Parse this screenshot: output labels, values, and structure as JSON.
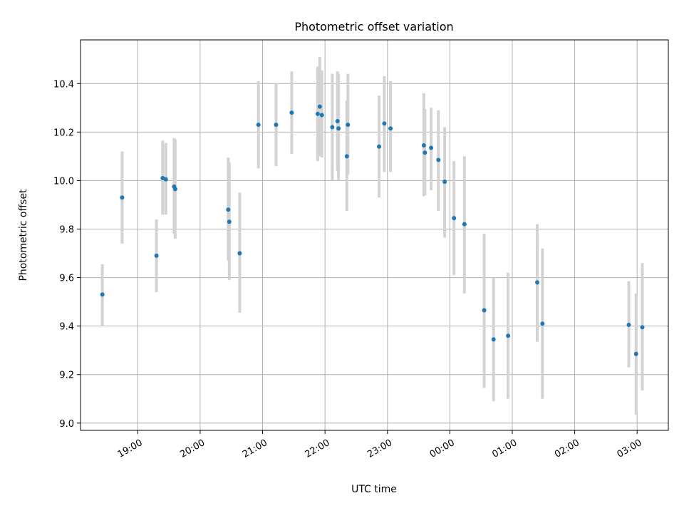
{
  "chart_data": {
    "type": "scatter",
    "title": "Photometric offset variation",
    "xlabel": "UTC time",
    "ylabel": "Photometric offset",
    "x_ticks": [
      "19:00",
      "20:00",
      "21:00",
      "22:00",
      "23:00",
      "00:00",
      "01:00",
      "02:00",
      "03:00"
    ],
    "y_ticks": [
      "9.0",
      "9.2",
      "9.4",
      "9.6",
      "9.8",
      "10.0",
      "10.2",
      "10.4"
    ],
    "ylim": [
      8.97,
      10.58
    ],
    "xlim": [
      "18:05",
      "03:30"
    ],
    "grid": true,
    "colors": {
      "points": "#1f77b4",
      "errorbars": "#d3d3d3",
      "grid": "#b0b0b0"
    },
    "points": [
      {
        "t": "18:26",
        "y": 9.53,
        "lo": 9.4,
        "hi": 9.655
      },
      {
        "t": "18:45",
        "y": 9.93,
        "lo": 9.74,
        "hi": 10.12
      },
      {
        "t": "19:18",
        "y": 9.69,
        "lo": 9.54,
        "hi": 9.84
      },
      {
        "t": "19:24",
        "y": 10.01,
        "lo": 9.86,
        "hi": 10.165
      },
      {
        "t": "19:27",
        "y": 10.005,
        "lo": 9.86,
        "hi": 10.155
      },
      {
        "t": "19:35",
        "y": 9.975,
        "lo": 9.78,
        "hi": 10.175
      },
      {
        "t": "19:36",
        "y": 9.965,
        "lo": 9.76,
        "hi": 10.17
      },
      {
        "t": "20:27",
        "y": 9.88,
        "lo": 9.67,
        "hi": 10.095
      },
      {
        "t": "20:28",
        "y": 9.83,
        "lo": 9.59,
        "hi": 10.075
      },
      {
        "t": "20:38",
        "y": 9.7,
        "lo": 9.455,
        "hi": 9.95
      },
      {
        "t": "20:56",
        "y": 10.23,
        "lo": 10.05,
        "hi": 10.41
      },
      {
        "t": "21:13",
        "y": 10.23,
        "lo": 10.06,
        "hi": 10.4
      },
      {
        "t": "21:28",
        "y": 10.28,
        "lo": 10.11,
        "hi": 10.45
      },
      {
        "t": "21:53",
        "y": 10.275,
        "lo": 10.08,
        "hi": 10.47
      },
      {
        "t": "21:55",
        "y": 10.305,
        "lo": 10.1,
        "hi": 10.51
      },
      {
        "t": "21:57",
        "y": 10.27,
        "lo": 10.095,
        "hi": 10.455
      },
      {
        "t": "22:07",
        "y": 10.22,
        "lo": 10.0,
        "hi": 10.44
      },
      {
        "t": "22:12",
        "y": 10.245,
        "lo": 10.04,
        "hi": 10.45
      },
      {
        "t": "22:13",
        "y": 10.215,
        "lo": 10.0,
        "hi": 10.44
      },
      {
        "t": "22:21",
        "y": 10.1,
        "lo": 9.875,
        "hi": 10.33
      },
      {
        "t": "22:22",
        "y": 10.23,
        "lo": 10.025,
        "hi": 10.44
      },
      {
        "t": "22:52",
        "y": 10.14,
        "lo": 9.93,
        "hi": 10.35
      },
      {
        "t": "22:57",
        "y": 10.235,
        "lo": 10.035,
        "hi": 10.43
      },
      {
        "t": "23:03",
        "y": 10.215,
        "lo": 10.035,
        "hi": 10.41
      },
      {
        "t": "23:35",
        "y": 10.145,
        "lo": 9.935,
        "hi": 10.36
      },
      {
        "t": "23:36",
        "y": 10.115,
        "lo": 9.94,
        "hi": 10.295
      },
      {
        "t": "23:42",
        "y": 10.135,
        "lo": 9.96,
        "hi": 10.3
      },
      {
        "t": "23:49",
        "y": 10.085,
        "lo": 9.875,
        "hi": 10.29
      },
      {
        "t": "23:55",
        "y": 9.995,
        "lo": 9.765,
        "hi": 10.22
      },
      {
        "t": "00:04",
        "y": 9.845,
        "lo": 9.61,
        "hi": 10.08
      },
      {
        "t": "00:14",
        "y": 9.82,
        "lo": 9.535,
        "hi": 10.1
      },
      {
        "t": "00:33",
        "y": 9.465,
        "lo": 9.145,
        "hi": 9.78
      },
      {
        "t": "00:42",
        "y": 9.345,
        "lo": 9.09,
        "hi": 9.6
      },
      {
        "t": "00:56",
        "y": 9.36,
        "lo": 9.1,
        "hi": 9.62
      },
      {
        "t": "01:24",
        "y": 9.58,
        "lo": 9.335,
        "hi": 9.82
      },
      {
        "t": "01:29",
        "y": 9.41,
        "lo": 9.1,
        "hi": 9.72
      },
      {
        "t": "02:52",
        "y": 9.405,
        "lo": 9.23,
        "hi": 9.585
      },
      {
        "t": "02:59",
        "y": 9.285,
        "lo": 9.035,
        "hi": 9.535
      },
      {
        "t": "03:05",
        "y": 9.395,
        "lo": 9.135,
        "hi": 9.66
      }
    ]
  }
}
